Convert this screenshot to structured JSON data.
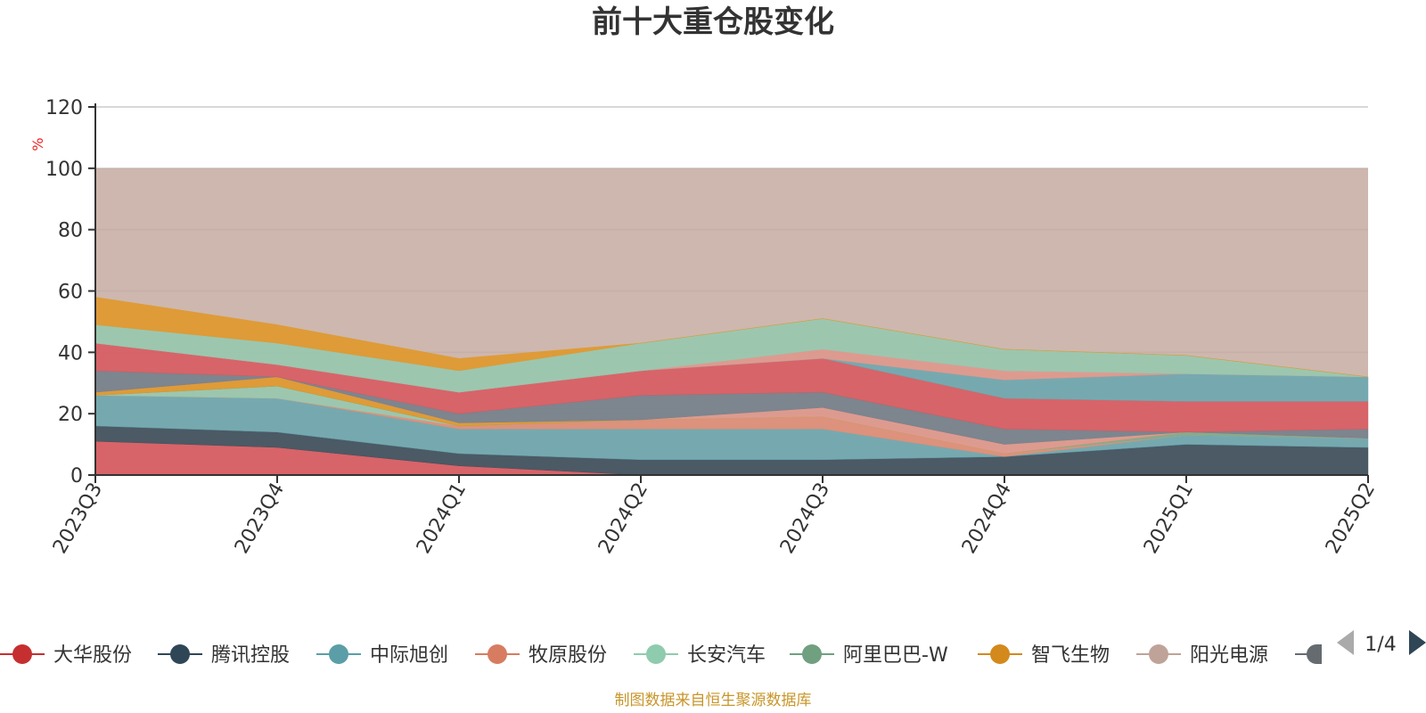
{
  "chart_data": {
    "type": "area",
    "stacked": true,
    "title": "前十大重仓股变化",
    "ylabel": "%",
    "ylim": [
      0,
      120
    ],
    "yticks": [
      0,
      20,
      40,
      60,
      80,
      100,
      120
    ],
    "grid": true,
    "legend_position": "bottom",
    "x": [
      "2023Q3",
      "2023Q4",
      "2024Q1",
      "2024Q2",
      "2024Q3",
      "2024Q4",
      "2025Q1",
      "2025Q2"
    ],
    "series": [
      {
        "name": "大华股份",
        "color": "#d9535a",
        "values": [
          11,
          9,
          3,
          0,
          0,
          0,
          0,
          0
        ]
      },
      {
        "name": "腾讯控股",
        "color": "#2f4656",
        "values": [
          5,
          5,
          4,
          5,
          5,
          6,
          10,
          9
        ]
      },
      {
        "name": "中际旭创",
        "color": "#63a6b0",
        "values": [
          10,
          11,
          8,
          10,
          10,
          0,
          3,
          3
        ]
      },
      {
        "name": "牧原股份",
        "color": "#e08a72",
        "values": [
          0,
          0,
          1,
          3,
          4,
          1,
          0,
          0
        ]
      },
      {
        "name": "长安汽车",
        "color": "#93cab0",
        "values": [
          0,
          4,
          0,
          0,
          0,
          0,
          0,
          0
        ]
      },
      {
        "name": "阿里巴巴-W",
        "color": "#79a889",
        "values": [
          0,
          0,
          0,
          0,
          0,
          0,
          1,
          0
        ]
      },
      {
        "name": "智飞生物",
        "color": "#e2961f",
        "values": [
          1,
          3,
          1,
          0,
          0,
          0,
          0,
          0
        ]
      }
    ],
    "remainder": {
      "color": "#c5aaa0",
      "total": 100,
      "note": ""
    },
    "top_layers": [
      {
        "color": "#e1958a",
        "values": [
          0,
          0,
          0,
          0,
          3,
          3,
          0,
          0
        ]
      },
      {
        "color": "#6c7b88",
        "values": [
          7,
          0,
          3,
          8,
          5,
          5,
          0,
          3
        ]
      },
      {
        "color": "#d9535a",
        "values": [
          9,
          4,
          7,
          8,
          11,
          10,
          10,
          9
        ]
      },
      {
        "color": "#63a6b0",
        "values": [
          0,
          0,
          0,
          0,
          0,
          6,
          9,
          8
        ]
      },
      {
        "color": "#e1958a",
        "values": [
          0,
          0,
          0,
          0,
          3,
          3,
          0,
          0
        ]
      },
      {
        "color": "#93cab0",
        "values": [
          6,
          7,
          7,
          9,
          10,
          7,
          6,
          0
        ]
      },
      {
        "color": "#e2961f",
        "values": [
          9,
          6,
          4,
          0,
          0,
          0,
          0,
          0
        ]
      }
    ],
    "legend": [
      {
        "name": "大华股份",
        "color": "#c62f2f"
      },
      {
        "name": "腾讯控股",
        "color": "#2f4656"
      },
      {
        "name": "中际旭创",
        "color": "#5b9ea8"
      },
      {
        "name": "牧原股份",
        "color": "#d77c60"
      },
      {
        "name": "长安汽车",
        "color": "#8fcbae"
      },
      {
        "name": "阿里巴巴-W",
        "color": "#70a080"
      },
      {
        "name": "智飞生物",
        "color": "#d4891c"
      },
      {
        "name": "阳光电源",
        "color": "#c0a398"
      }
    ],
    "legend_page": "1/4",
    "source_note": "制图数据来自恒生聚源数据库"
  }
}
